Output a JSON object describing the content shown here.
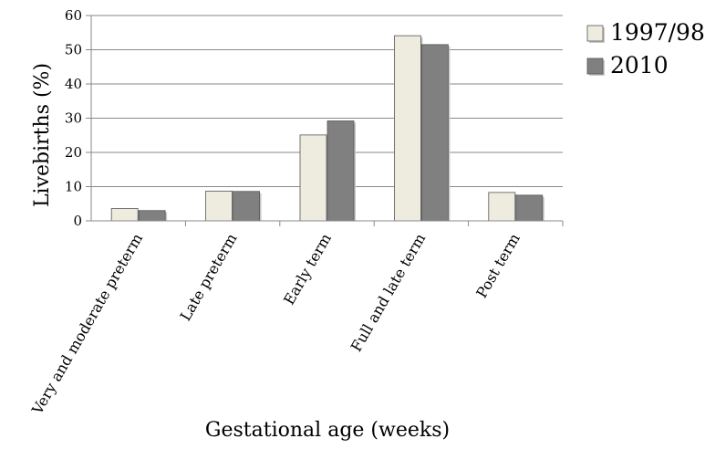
{
  "chart_data": {
    "type": "bar",
    "title": "",
    "xlabel": "Gestational age (weeks)",
    "ylabel": "Livebirths (%)",
    "ylim": [
      0,
      60
    ],
    "yticks": [
      0,
      10,
      20,
      30,
      40,
      50,
      60
    ],
    "grid": "horizontal",
    "legend_position": "top-right",
    "categories": [
      "Very and moderate preterm",
      "Late preterm",
      "Early term",
      "Full and late term",
      "Post term"
    ],
    "series": [
      {
        "name": "1997/98",
        "color": "#eeebdf",
        "values": [
          3.6,
          8.7,
          25.1,
          54.1,
          8.3
        ]
      },
      {
        "name": "2010",
        "color": "#808080",
        "values": [
          3.0,
          8.6,
          29.2,
          51.5,
          7.5
        ]
      }
    ]
  }
}
